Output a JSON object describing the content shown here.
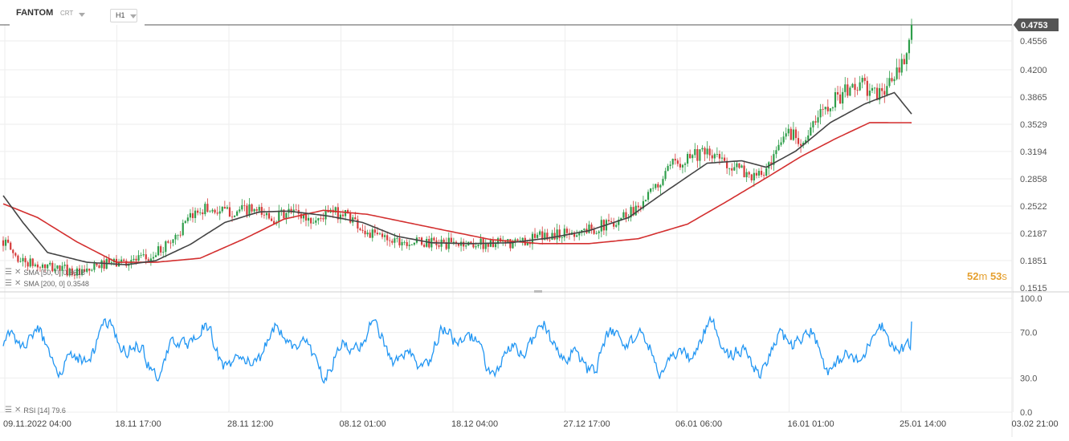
{
  "header": {
    "symbol": "FANTOM",
    "symbol_type": "CRT",
    "timeframe": "H1"
  },
  "countdown": {
    "minutes": "52",
    "minutes_unit": "m",
    "seconds": "53",
    "seconds_unit": "s"
  },
  "colors": {
    "candle_up": "#2e9e4a",
    "candle_down": "#d63b3b",
    "sma_short": "#444444",
    "sma_long": "#d32f2f",
    "rsi": "#2196f3",
    "price_tag_bg": "#555555",
    "grid": "#eeeeee"
  },
  "legends": {
    "sma_short": "SMA [50, 0]  0.3618",
    "sma_long": "SMA [200, 0]  0.3548",
    "rsi": "RSI [14]  79.6"
  },
  "chart_data": [
    {
      "type": "candlestick",
      "name": "price",
      "y_ticks": [
        "0.4556",
        "0.4200",
        "0.3865",
        "0.3529",
        "0.3194",
        "0.2858",
        "0.2522",
        "0.2187",
        "0.1851",
        "0.1515"
      ],
      "ylim": [
        0.1515,
        0.4753
      ],
      "current_price": "0.4753",
      "x_ticks": [
        "09.11.2022  04:00",
        "18.11  17:00",
        "28.11  12:00",
        "08.12  01:00",
        "18.12  04:00",
        "27.12  17:00",
        "06.01  06:00",
        "16.01  01:00",
        "25.01  14:00",
        "03.02  21:00"
      ],
      "close_anchors": [
        [
          0,
          0.21
        ],
        [
          6,
          0.187
        ],
        [
          14,
          0.178
        ],
        [
          24,
          0.175
        ],
        [
          32,
          0.168
        ],
        [
          40,
          0.18
        ],
        [
          52,
          0.185
        ],
        [
          60,
          0.188
        ],
        [
          70,
          0.215
        ],
        [
          80,
          0.25
        ],
        [
          90,
          0.245
        ],
        [
          100,
          0.247
        ],
        [
          110,
          0.238
        ],
        [
          118,
          0.245
        ],
        [
          126,
          0.233
        ],
        [
          132,
          0.244
        ],
        [
          140,
          0.242
        ],
        [
          148,
          0.218
        ],
        [
          158,
          0.212
        ],
        [
          166,
          0.208
        ],
        [
          176,
          0.206
        ],
        [
          186,
          0.206
        ],
        [
          196,
          0.206
        ],
        [
          206,
          0.205
        ],
        [
          216,
          0.213
        ],
        [
          226,
          0.218
        ],
        [
          236,
          0.222
        ],
        [
          246,
          0.23
        ],
        [
          256,
          0.248
        ],
        [
          264,
          0.27
        ],
        [
          272,
          0.302
        ],
        [
          280,
          0.318
        ],
        [
          290,
          0.312
        ],
        [
          300,
          0.295
        ],
        [
          306,
          0.287
        ],
        [
          312,
          0.3
        ],
        [
          318,
          0.345
        ],
        [
          326,
          0.333
        ],
        [
          334,
          0.377
        ],
        [
          342,
          0.392
        ],
        [
          348,
          0.404
        ],
        [
          354,
          0.388
        ],
        [
          360,
          0.402
        ],
        [
          366,
          0.428
        ],
        [
          370,
          0.4753
        ]
      ],
      "sma_short_anchors": [
        [
          0,
          0.265
        ],
        [
          8,
          0.232
        ],
        [
          18,
          0.195
        ],
        [
          34,
          0.183
        ],
        [
          50,
          0.18
        ],
        [
          62,
          0.185
        ],
        [
          76,
          0.205
        ],
        [
          90,
          0.232
        ],
        [
          104,
          0.245
        ],
        [
          116,
          0.246
        ],
        [
          132,
          0.24
        ],
        [
          146,
          0.232
        ],
        [
          160,
          0.215
        ],
        [
          174,
          0.207
        ],
        [
          190,
          0.206
        ],
        [
          206,
          0.207
        ],
        [
          222,
          0.213
        ],
        [
          238,
          0.222
        ],
        [
          254,
          0.238
        ],
        [
          270,
          0.272
        ],
        [
          286,
          0.305
        ],
        [
          300,
          0.308
        ],
        [
          310,
          0.3
        ],
        [
          322,
          0.32
        ],
        [
          336,
          0.355
        ],
        [
          350,
          0.378
        ],
        [
          362,
          0.392
        ],
        [
          370,
          0.3618
        ]
      ],
      "sma_long_anchors": [
        [
          0,
          0.255
        ],
        [
          14,
          0.238
        ],
        [
          30,
          0.208
        ],
        [
          46,
          0.183
        ],
        [
          62,
          0.183
        ],
        [
          80,
          0.188
        ],
        [
          98,
          0.212
        ],
        [
          114,
          0.236
        ],
        [
          130,
          0.247
        ],
        [
          148,
          0.242
        ],
        [
          164,
          0.232
        ],
        [
          180,
          0.222
        ],
        [
          198,
          0.211
        ],
        [
          218,
          0.206
        ],
        [
          238,
          0.206
        ],
        [
          258,
          0.212
        ],
        [
          278,
          0.23
        ],
        [
          294,
          0.258
        ],
        [
          310,
          0.287
        ],
        [
          324,
          0.313
        ],
        [
          338,
          0.335
        ],
        [
          352,
          0.355
        ],
        [
          370,
          0.3548
        ]
      ],
      "candle_count": 370
    },
    {
      "type": "line",
      "name": "rsi",
      "y_ticks": [
        "100.0",
        "70.0",
        "30.0",
        "0.0"
      ],
      "ylim": [
        0,
        100
      ],
      "last_value": 79.6
    }
  ]
}
